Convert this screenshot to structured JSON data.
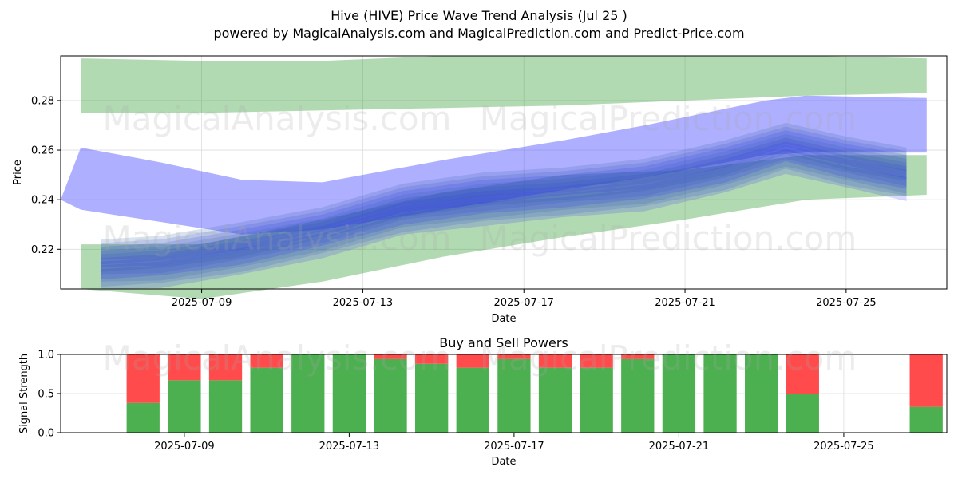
{
  "title_line1": "Hive (HIVE) Price Wave Trend Analysis (Jul 25 )",
  "title_line2": "powered by MagicalAnalysis.com and MagicalPrediction.com and Predict-Price.com",
  "watermarks": [
    "MagicalAnalysis.com",
    "MagicalPrediction.com"
  ],
  "colors": {
    "green_band": "#2e9b2e",
    "blue_band": "#4d4dff",
    "buy": "#4caf50",
    "sell": "#ff4b4b"
  },
  "chart_data": [
    {
      "type": "area",
      "xlabel": "Date",
      "ylabel": "Price",
      "x_range": [
        "2025-07-05T12:00",
        "2025-07-27T12:00"
      ],
      "ylim": [
        0.204,
        0.298
      ],
      "grid": true,
      "x_ticks": [
        "2025-07-09",
        "2025-07-13",
        "2025-07-17",
        "2025-07-21",
        "2025-07-25"
      ],
      "y_ticks": [
        0.22,
        0.24,
        0.26,
        0.28
      ],
      "upper_green_band": {
        "x": [
          "2025-07-06",
          "2025-07-09",
          "2025-07-12",
          "2025-07-15",
          "2025-07-18",
          "2025-07-21",
          "2025-07-24",
          "2025-07-27"
        ],
        "lower": [
          0.275,
          0.275,
          0.276,
          0.277,
          0.278,
          0.28,
          0.282,
          0.283
        ],
        "upper": [
          0.297,
          0.296,
          0.296,
          0.298,
          0.298,
          0.298,
          0.298,
          0.297
        ]
      },
      "lower_green_band": {
        "x": [
          "2025-07-06",
          "2025-07-09",
          "2025-07-12",
          "2025-07-15",
          "2025-07-18",
          "2025-07-21",
          "2025-07-24",
          "2025-07-27"
        ],
        "lower": [
          0.204,
          0.2,
          0.207,
          0.217,
          0.225,
          0.232,
          0.24,
          0.242
        ],
        "upper": [
          0.222,
          0.222,
          0.232,
          0.243,
          0.25,
          0.252,
          0.258,
          0.258
        ]
      },
      "blue_band": {
        "x": [
          "2025-07-05T12:00",
          "2025-07-06",
          "2025-07-08",
          "2025-07-10",
          "2025-07-12",
          "2025-07-15",
          "2025-07-18",
          "2025-07-20",
          "2025-07-23",
          "2025-07-24",
          "2025-07-27"
        ],
        "upper": [
          0.24,
          0.261,
          0.255,
          0.248,
          0.247,
          0.256,
          0.264,
          0.27,
          0.28,
          0.282,
          0.281
        ],
        "lower": [
          0.24,
          0.236,
          0.231,
          0.226,
          0.228,
          0.236,
          0.244,
          0.249,
          0.258,
          0.259,
          0.259
        ]
      },
      "forecast_paths_center": {
        "x": [
          "2025-07-06T12:00",
          "2025-07-08",
          "2025-07-10",
          "2025-07-12",
          "2025-07-14",
          "2025-07-16",
          "2025-07-18",
          "2025-07-20",
          "2025-07-22",
          "2025-07-23T12:00",
          "2025-07-25",
          "2025-07-26T12:00"
        ],
        "y": [
          0.214,
          0.215,
          0.22,
          0.227,
          0.236,
          0.24,
          0.243,
          0.246,
          0.253,
          0.261,
          0.255,
          0.25
        ]
      }
    },
    {
      "type": "bar",
      "title": "Buy and Sell Powers",
      "xlabel": "Date",
      "ylabel": "Signal Strength",
      "ylim": [
        0,
        1.0
      ],
      "y_ticks": [
        "0.0",
        "0.5",
        "1.0"
      ],
      "x_ticks": [
        "2025-07-09",
        "2025-07-13",
        "2025-07-17",
        "2025-07-21",
        "2025-07-25"
      ],
      "x_range": [
        "2025-07-06T00:00",
        "2025-07-27T12:00"
      ],
      "series": [
        {
          "name": "Buy",
          "values": [
            0.38,
            0.67,
            0.67,
            0.83,
            1.0,
            1.0,
            0.94,
            0.88,
            0.83,
            0.94,
            0.83,
            0.83,
            0.94,
            1.0,
            1.0,
            1.0,
            0.5,
            0,
            0,
            0.33
          ]
        },
        {
          "name": "Sell",
          "values": [
            0.62,
            0.33,
            0.33,
            0.17,
            0,
            0,
            0.06,
            0.12,
            0.17,
            0.06,
            0.17,
            0.17,
            0.06,
            0,
            0,
            0,
            0.5,
            0,
            0,
            0.67
          ]
        }
      ],
      "categories": [
        "2025-07-08",
        "2025-07-09",
        "2025-07-10",
        "2025-07-11",
        "2025-07-12",
        "2025-07-13",
        "2025-07-14",
        "2025-07-15",
        "2025-07-16",
        "2025-07-17",
        "2025-07-18",
        "2025-07-19",
        "2025-07-20",
        "2025-07-21",
        "2025-07-22",
        "2025-07-23",
        "2025-07-24",
        "2025-07-25",
        "2025-07-26",
        "2025-07-27"
      ]
    }
  ]
}
